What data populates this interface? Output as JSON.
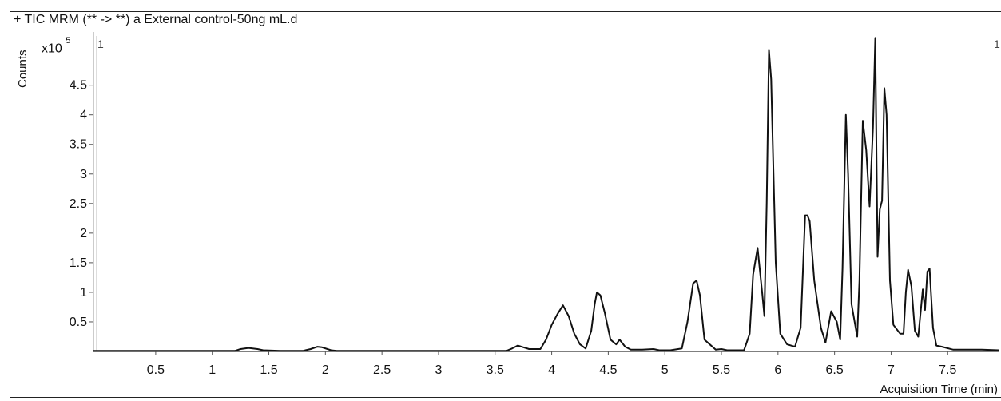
{
  "header": {
    "title": "+ TIC MRM (** -> **) a External control-50ng mL.d"
  },
  "marker_left": "1",
  "marker_right": "1",
  "chart_data": {
    "type": "line",
    "title": "+ TIC MRM (** -> **) a External control-50ng mL.d",
    "xlabel": "Acquisition Time (min)",
    "ylabel": "Counts",
    "y_multiplier": "x10",
    "y_exponent": "5",
    "xlim": [
      -0.05,
      7.95
    ],
    "ylim": [
      0,
      5.4
    ],
    "x_ticks": [
      0.5,
      1,
      1.5,
      2,
      2.5,
      3,
      3.5,
      4,
      4.5,
      5,
      5.5,
      6,
      6.5,
      7,
      7.5
    ],
    "x_tick_labels": [
      "0.5",
      "1",
      "1.5",
      "2",
      "2.5",
      "3",
      "3.5",
      "4",
      "4.5",
      "5",
      "5.5",
      "6",
      "6.5",
      "7",
      "7.5"
    ],
    "y_ticks": [
      0.5,
      1,
      1.5,
      2,
      2.5,
      3,
      3.5,
      4,
      4.5
    ],
    "y_tick_labels": [
      "0.5",
      "1",
      "1.5",
      "2",
      "2.5",
      "3",
      "3.5",
      "4",
      "4.5"
    ],
    "line_color": "#111111",
    "series": [
      {
        "x": [
          -0.05,
          1.2,
          1.25,
          1.32,
          1.4,
          1.45,
          1.6,
          1.8,
          1.87,
          1.93,
          1.97,
          2.05,
          2.1,
          3.6,
          3.65,
          3.7,
          3.75,
          3.8,
          3.9,
          3.95,
          4.0,
          4.05,
          4.1,
          4.15,
          4.2,
          4.25,
          4.3,
          4.35,
          4.38,
          4.4,
          4.43,
          4.47,
          4.52,
          4.57,
          4.6,
          4.65,
          4.7,
          4.8,
          4.9,
          4.95,
          5.05,
          5.15,
          5.2,
          5.25,
          5.28,
          5.31,
          5.35,
          5.45,
          5.5,
          5.55,
          5.7,
          5.75,
          5.78,
          5.82,
          5.86,
          5.88,
          5.9,
          5.92,
          5.94,
          5.98,
          6.02,
          6.08,
          6.15,
          6.2,
          6.24,
          6.26,
          6.28,
          6.32,
          6.38,
          6.42,
          6.47,
          6.52,
          6.55,
          6.57,
          6.6,
          6.62,
          6.65,
          6.7,
          6.72,
          6.75,
          6.78,
          6.81,
          6.84,
          6.86,
          6.88,
          6.9,
          6.92,
          6.94,
          6.96,
          6.99,
          7.02,
          7.08,
          7.11,
          7.13,
          7.15,
          7.18,
          7.21,
          7.24,
          7.26,
          7.28,
          7.3,
          7.32,
          7.34,
          7.37,
          7.4,
          7.45,
          7.55,
          7.8,
          7.95
        ],
        "y": [
          0.01,
          0.01,
          0.04,
          0.06,
          0.04,
          0.02,
          0.01,
          0.01,
          0.04,
          0.08,
          0.07,
          0.02,
          0.01,
          0.01,
          0.05,
          0.1,
          0.07,
          0.04,
          0.04,
          0.2,
          0.45,
          0.63,
          0.78,
          0.6,
          0.3,
          0.12,
          0.05,
          0.35,
          0.8,
          1.0,
          0.95,
          0.65,
          0.2,
          0.12,
          0.2,
          0.08,
          0.03,
          0.03,
          0.04,
          0.02,
          0.02,
          0.05,
          0.5,
          1.15,
          1.2,
          0.95,
          0.2,
          0.03,
          0.04,
          0.02,
          0.02,
          0.3,
          1.3,
          1.75,
          1.0,
          0.6,
          2.5,
          5.1,
          4.6,
          1.5,
          0.3,
          0.12,
          0.08,
          0.4,
          2.3,
          2.3,
          2.2,
          1.2,
          0.4,
          0.15,
          0.68,
          0.5,
          0.2,
          1.4,
          4.0,
          3.0,
          0.8,
          0.25,
          1.2,
          3.9,
          3.4,
          2.45,
          3.8,
          5.3,
          1.6,
          2.4,
          2.55,
          4.45,
          4.0,
          1.2,
          0.45,
          0.3,
          0.3,
          1.0,
          1.38,
          1.1,
          0.35,
          0.25,
          0.65,
          1.05,
          0.7,
          1.35,
          1.4,
          0.4,
          0.1,
          0.08,
          0.03,
          0.03,
          0.02
        ]
      }
    ]
  }
}
